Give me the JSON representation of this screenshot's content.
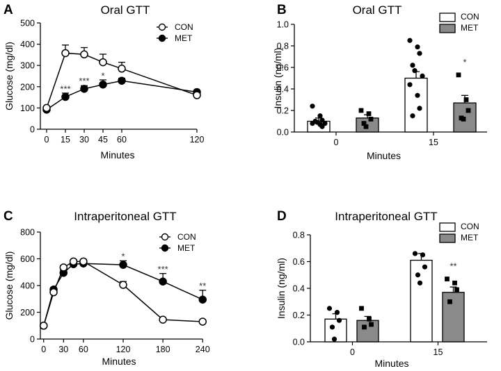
{
  "colors": {
    "con_bar": "#ffffff",
    "met_bar": "#8a8a8a",
    "axis": "#000000",
    "marker": "#000000"
  },
  "chart_data": [
    {
      "id": "A",
      "type": "line",
      "letter": "A",
      "title": "Oral GTT",
      "xlabel": "Minutes",
      "ylabel": "Glucose (mg/dl)",
      "xlim": [
        -5,
        125
      ],
      "ylim": [
        0,
        500
      ],
      "xticks": [
        0,
        15,
        30,
        45,
        60,
        120
      ],
      "yticks": [
        0,
        100,
        200,
        300,
        400,
        500
      ],
      "legend": [
        "CON",
        "MET"
      ],
      "series": [
        {
          "name": "CON",
          "filled": false,
          "x": [
            0,
            15,
            30,
            45,
            60,
            120
          ],
          "y": [
            100,
            358,
            352,
            315,
            285,
            160
          ],
          "err": [
            0,
            38,
            32,
            38,
            30,
            8
          ]
        },
        {
          "name": "MET",
          "filled": true,
          "x": [
            0,
            15,
            30,
            45,
            60,
            120
          ],
          "y": [
            92,
            152,
            190,
            210,
            228,
            175
          ],
          "err": [
            0,
            18,
            15,
            22,
            12,
            0
          ]
        }
      ],
      "annotations": [
        {
          "x": 15,
          "y": 175,
          "text": "***"
        },
        {
          "x": 30,
          "y": 212,
          "text": "***"
        },
        {
          "x": 45,
          "y": 237,
          "text": "*"
        }
      ]
    },
    {
      "id": "B",
      "type": "bar",
      "letter": "B",
      "title": "Oral GTT",
      "xlabel": "Minutes",
      "ylabel": "Insulin (ng/ml)",
      "ylim": [
        0,
        1.0
      ],
      "yticks": [
        "0.0",
        "0.2",
        "0.4",
        "0.6",
        "0.8",
        "1.0"
      ],
      "categories": [
        "0",
        "15"
      ],
      "legend": [
        "CON",
        "MET"
      ],
      "series": [
        {
          "name": "CON",
          "values": [
            0.1,
            0.5
          ],
          "err": [
            0.03,
            0.06
          ],
          "points": [
            [
              0.24,
              0.15,
              0.11,
              0.1,
              0.09,
              0.08,
              0.08,
              0.07,
              0.05
            ],
            [
              0.85,
              0.79,
              0.73,
              0.62,
              0.57,
              0.52,
              0.44,
              0.34,
              0.22,
              0.15
            ]
          ]
        },
        {
          "name": "MET",
          "values": [
            0.13,
            0.27
          ],
          "err": [
            0.03,
            0.07
          ],
          "points": [
            [
              0.2,
              0.17,
              0.12,
              0.08,
              0.05
            ],
            [
              0.53,
              0.3,
              0.2,
              0.13,
              0.12
            ]
          ]
        }
      ],
      "annotations": [
        {
          "category": 1,
          "series": 1,
          "text": "*"
        }
      ]
    },
    {
      "id": "C",
      "type": "line",
      "letter": "C",
      "title": "Intraperitoneal GTT",
      "xlabel": "Minutes",
      "ylabel": "Glucose (mg/dl)",
      "xlim": [
        -5,
        245
      ],
      "ylim": [
        0,
        800
      ],
      "xticks": [
        0,
        30,
        60,
        120,
        180,
        240
      ],
      "yticks": [
        0,
        200,
        400,
        600,
        800
      ],
      "legend": [
        "CON",
        "MET"
      ],
      "series": [
        {
          "name": "CON",
          "filled": false,
          "x": [
            0,
            15,
            30,
            45,
            60,
            120,
            180,
            240
          ],
          "y": [
            100,
            350,
            535,
            580,
            580,
            405,
            145,
            130
          ],
          "err": [
            0,
            15,
            15,
            15,
            15,
            25,
            0,
            0
          ]
        },
        {
          "name": "MET",
          "filled": true,
          "x": [
            0,
            15,
            30,
            45,
            60,
            120,
            180,
            240
          ],
          "y": [
            100,
            370,
            495,
            560,
            565,
            555,
            430,
            295
          ],
          "err": [
            0,
            15,
            20,
            20,
            25,
            30,
            60,
            70
          ]
        }
      ],
      "annotations": [
        {
          "x": 120,
          "y": 595,
          "text": "*"
        },
        {
          "x": 180,
          "y": 500,
          "text": "***"
        },
        {
          "x": 240,
          "y": 375,
          "text": "**"
        }
      ]
    },
    {
      "id": "D",
      "type": "bar",
      "letter": "D",
      "title": "Intraperitoneal GTT",
      "xlabel": "Minutes",
      "ylabel": "Insulin (ng/ml)",
      "ylim": [
        0,
        0.8
      ],
      "yticks": [
        "0.0",
        "0.2",
        "0.4",
        "0.6",
        "0.8"
      ],
      "categories": [
        "0",
        "15"
      ],
      "legend": [
        "CON",
        "MET"
      ],
      "series": [
        {
          "name": "CON",
          "values": [
            0.17,
            0.61
          ],
          "err": [
            0.04,
            0.05
          ],
          "points": [
            [
              0.25,
              0.22,
              0.16,
              0.11,
              0.02
            ],
            [
              0.66,
              0.65,
              0.56,
              0.5,
              0.44
            ]
          ]
        },
        {
          "name": "MET",
          "values": [
            0.16,
            0.37
          ],
          "err": [
            0.03,
            0.04
          ],
          "points": [
            [
              0.25,
              0.17,
              0.13,
              0.11
            ],
            [
              0.47,
              0.44,
              0.39,
              0.3
            ]
          ]
        }
      ],
      "annotations": [
        {
          "category": 1,
          "series": 1,
          "text": "**"
        }
      ]
    }
  ]
}
